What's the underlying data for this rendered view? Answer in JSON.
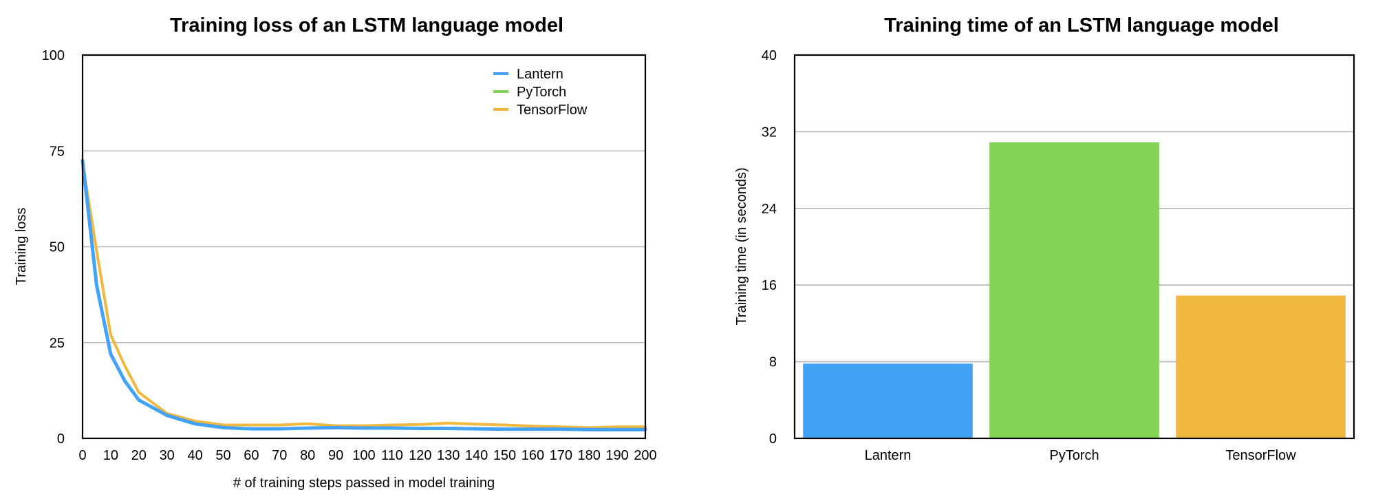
{
  "colors": {
    "Lantern": "#42a2f6",
    "PyTorch": "#82d552",
    "TensorFlow": "#f0b83f"
  },
  "chart_data": [
    {
      "type": "line",
      "title": "Training loss of an LSTM language model",
      "xlabel": "# of training steps passed in model training",
      "ylabel": "Training loss",
      "xlim": [
        0,
        200
      ],
      "ylim": [
        0,
        100
      ],
      "x_ticks": [
        "0",
        "10",
        "20",
        "30",
        "40",
        "50",
        "60",
        "70",
        "80",
        "90",
        "100",
        "110",
        "120",
        "130",
        "140",
        "150",
        "160",
        "170",
        "180",
        "190",
        "200"
      ],
      "y_ticks": [
        "0",
        "25",
        "50",
        "75",
        "100"
      ],
      "grid": true,
      "legend_position": "top-right",
      "x": [
        0,
        5,
        10,
        15,
        20,
        30,
        40,
        50,
        60,
        70,
        80,
        90,
        100,
        110,
        120,
        130,
        140,
        150,
        160,
        170,
        180,
        190,
        200
      ],
      "series": [
        {
          "name": "Lantern",
          "values": [
            72.5,
            40,
            22,
            15,
            10,
            6,
            3.8,
            2.8,
            2.5,
            2.5,
            2.7,
            2.8,
            2.7,
            2.7,
            2.6,
            2.6,
            2.5,
            2.4,
            2.4,
            2.4,
            2.3,
            2.3,
            2.3
          ]
        },
        {
          "name": "PyTorch",
          "values": [
            72.5,
            40,
            22,
            15,
            10,
            6,
            3.8,
            2.8,
            2.5,
            2.5,
            2.7,
            2.8,
            2.7,
            2.7,
            2.6,
            2.6,
            2.5,
            2.4,
            2.4,
            2.4,
            2.3,
            2.3,
            2.3
          ]
        },
        {
          "name": "TensorFlow",
          "values": [
            72,
            49,
            27,
            19,
            12,
            6.5,
            4.5,
            3.5,
            3.5,
            3.5,
            3.8,
            3.3,
            3.3,
            3.5,
            3.6,
            4.0,
            3.7,
            3.5,
            3.2,
            3.0,
            2.8,
            3.0,
            3.0
          ]
        }
      ]
    },
    {
      "type": "bar",
      "title": "Training time of an LSTM language model",
      "xlabel": "",
      "ylabel": "Training time (in seconds)",
      "ylim": [
        0,
        40
      ],
      "y_ticks": [
        "0",
        "8",
        "16",
        "24",
        "32",
        "40"
      ],
      "grid": true,
      "categories": [
        "Lantern",
        "PyTorch",
        "TensorFlow"
      ],
      "values": [
        7.8,
        30.9,
        14.9
      ]
    }
  ]
}
